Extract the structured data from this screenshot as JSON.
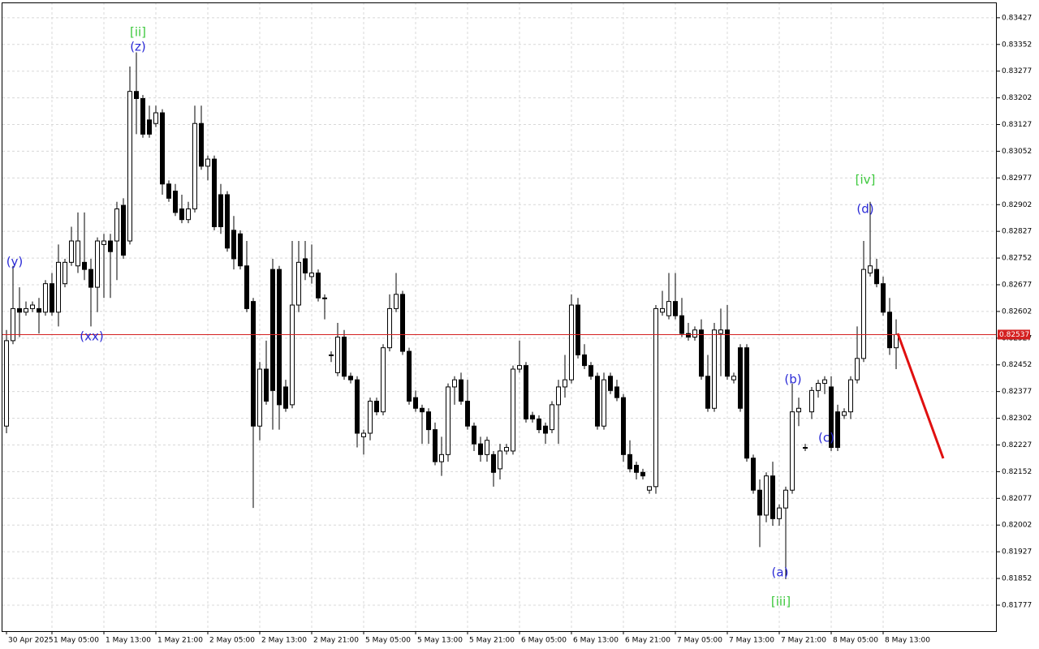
{
  "chart_data": {
    "type": "candlestick",
    "categories": [
      "30 Apr 2025",
      null,
      null,
      null,
      null,
      null,
      null,
      "1 May 05:00",
      null,
      null,
      null,
      null,
      null,
      null,
      null,
      "1 May 13:00",
      null,
      null,
      null,
      null,
      null,
      null,
      null,
      "1 May 21:00",
      null,
      null,
      null,
      null,
      null,
      null,
      null,
      "2 May 05:00",
      null,
      null,
      null,
      null,
      null,
      null,
      null,
      "2 May 13:00",
      null,
      null,
      null,
      null,
      null,
      null,
      null,
      "2 May 21:00",
      null,
      null,
      null,
      null,
      null,
      null,
      null,
      "5 May 05:00",
      null,
      null,
      null,
      null,
      null,
      null,
      null,
      "5 May 13:00",
      null,
      null,
      null,
      null,
      null,
      null,
      null,
      "5 May 21:00",
      null,
      null,
      null,
      null,
      null,
      null,
      null,
      "6 May 05:00",
      null,
      null,
      null,
      null,
      null,
      null,
      null,
      "6 May 13:00",
      null,
      null,
      null,
      null,
      null,
      null,
      null,
      "6 May 21:00",
      null,
      null,
      null,
      null,
      null,
      null,
      null,
      "7 May 05:00",
      null,
      null,
      null,
      null,
      null,
      null,
      null,
      "7 May 13:00",
      null,
      null,
      null,
      null,
      null,
      null,
      null,
      "7 May 21:00",
      null,
      null,
      null,
      null,
      null,
      null,
      null,
      "8 May 05:00",
      null,
      null,
      null,
      null,
      null,
      null,
      null,
      "8 May 13:00",
      null,
      null
    ],
    "candles": [
      [
        0.8228,
        0.8255,
        0.8226,
        0.8252
      ],
      [
        0.8252,
        0.8273,
        0.8251,
        0.8261
      ],
      [
        0.8261,
        0.8267,
        0.8253,
        0.826
      ],
      [
        0.826,
        0.8263,
        0.8259,
        0.8261
      ],
      [
        0.8261,
        0.8263,
        0.826,
        0.8262
      ],
      [
        0.8261,
        0.8264,
        0.8254,
        0.826
      ],
      [
        0.826,
        0.8269,
        0.8259,
        0.8268
      ],
      [
        0.8268,
        0.8271,
        0.8259,
        0.826
      ],
      [
        0.826,
        0.8279,
        0.8256,
        0.8274
      ],
      [
        0.8268,
        0.8275,
        0.8267,
        0.8274
      ],
      [
        0.8274,
        0.8284,
        0.8273,
        0.828
      ],
      [
        0.8273,
        0.8288,
        0.8271,
        0.828
      ],
      [
        0.8274,
        0.8288,
        0.8269,
        0.8272
      ],
      [
        0.8272,
        0.8275,
        0.8256,
        0.8267
      ],
      [
        0.8267,
        0.8281,
        0.826,
        0.828
      ],
      [
        0.8279,
        0.8282,
        0.8264,
        0.828
      ],
      [
        0.828,
        0.8282,
        0.8264,
        0.8277
      ],
      [
        0.828,
        0.8291,
        0.8269,
        0.8289
      ],
      [
        0.829,
        0.8292,
        0.8275,
        0.8276
      ],
      [
        0.828,
        0.8329,
        0.8279,
        0.8322
      ],
      [
        0.8322,
        0.8333,
        0.831,
        0.832
      ],
      [
        0.832,
        0.8321,
        0.8309,
        0.831
      ],
      [
        0.8314,
        0.8318,
        0.8309,
        0.831
      ],
      [
        0.8313,
        0.8318,
        0.8312,
        0.8316
      ],
      [
        0.8316,
        0.8317,
        0.8293,
        0.8296
      ],
      [
        0.8296,
        0.8297,
        0.8291,
        0.8292
      ],
      [
        0.8294,
        0.8296,
        0.8287,
        0.8288
      ],
      [
        0.8289,
        0.8293,
        0.8285,
        0.8286
      ],
      [
        0.8286,
        0.8291,
        0.8285,
        0.8289
      ],
      [
        0.8289,
        0.8318,
        0.8288,
        0.8313
      ],
      [
        0.8313,
        0.8318,
        0.83,
        0.8301
      ],
      [
        0.8301,
        0.8304,
        0.8297,
        0.8303
      ],
      [
        0.8303,
        0.8304,
        0.8283,
        0.8284
      ],
      [
        0.8293,
        0.8296,
        0.8282,
        0.8284
      ],
      [
        0.8293,
        0.8294,
        0.8277,
        0.8278
      ],
      [
        0.8283,
        0.8287,
        0.8272,
        0.8275
      ],
      [
        0.8282,
        0.8283,
        0.8272,
        0.8273
      ],
      [
        0.8273,
        0.828,
        0.826,
        0.8261
      ],
      [
        0.8263,
        0.8264,
        0.8205,
        0.8228
      ],
      [
        0.8228,
        0.8246,
        0.8224,
        0.8244
      ],
      [
        0.8244,
        0.8252,
        0.8234,
        0.8235
      ],
      [
        0.8272,
        0.8275,
        0.8227,
        0.8238
      ],
      [
        0.8272,
        0.8273,
        0.8227,
        0.8234
      ],
      [
        0.8239,
        0.8241,
        0.8232,
        0.8233
      ],
      [
        0.8234,
        0.828,
        0.8233,
        0.8262
      ],
      [
        0.8262,
        0.828,
        0.826,
        0.8274
      ],
      [
        0.8275,
        0.828,
        0.8269,
        0.8271
      ],
      [
        0.827,
        0.8279,
        0.8268,
        0.8271
      ],
      [
        0.8271,
        0.8272,
        0.8263,
        0.8264
      ],
      [
        0.8264,
        0.8265,
        0.8258,
        0.8264
      ],
      [
        0.8248,
        0.8249,
        0.8246,
        0.8248
      ],
      [
        0.8243,
        0.8257,
        0.8242,
        0.8253
      ],
      [
        0.8253,
        0.8255,
        0.8241,
        0.8242
      ],
      [
        0.8242,
        0.8243,
        0.824,
        0.8241
      ],
      [
        0.8241,
        0.8242,
        0.8222,
        0.8226
      ],
      [
        0.8225,
        0.8227,
        0.822,
        0.8226
      ],
      [
        0.8226,
        0.8236,
        0.8224,
        0.8235
      ],
      [
        0.8235,
        0.8236,
        0.8231,
        0.8232
      ],
      [
        0.8232,
        0.8251,
        0.8231,
        0.825
      ],
      [
        0.825,
        0.8265,
        0.8249,
        0.8261
      ],
      [
        0.8261,
        0.8271,
        0.826,
        0.8265
      ],
      [
        0.8265,
        0.8266,
        0.8248,
        0.8249
      ],
      [
        0.8249,
        0.825,
        0.8234,
        0.8235
      ],
      [
        0.8236,
        0.8238,
        0.8232,
        0.8233
      ],
      [
        0.8233,
        0.8234,
        0.8223,
        0.8232
      ],
      [
        0.8232,
        0.8233,
        0.8223,
        0.8227
      ],
      [
        0.8227,
        0.8229,
        0.8217,
        0.8218
      ],
      [
        0.8218,
        0.8225,
        0.8214,
        0.822
      ],
      [
        0.822,
        0.824,
        0.8218,
        0.8239
      ],
      [
        0.8239,
        0.8242,
        0.8234,
        0.8241
      ],
      [
        0.8241,
        0.8243,
        0.8234,
        0.8235
      ],
      [
        0.8235,
        0.8241,
        0.8227,
        0.8228
      ],
      [
        0.8228,
        0.8229,
        0.8221,
        0.8223
      ],
      [
        0.8223,
        0.8225,
        0.8218,
        0.822
      ],
      [
        0.822,
        0.8225,
        0.8218,
        0.8224
      ],
      [
        0.822,
        0.8221,
        0.8211,
        0.8215
      ],
      [
        0.8216,
        0.8223,
        0.8213,
        0.8221
      ],
      [
        0.8221,
        0.8223,
        0.822,
        0.8222
      ],
      [
        0.8221,
        0.8245,
        0.822,
        0.8244
      ],
      [
        0.8244,
        0.8252,
        0.8243,
        0.8245
      ],
      [
        0.8245,
        0.8246,
        0.8229,
        0.823
      ],
      [
        0.8231,
        0.8232,
        0.8229,
        0.823
      ],
      [
        0.823,
        0.8231,
        0.8226,
        0.8227
      ],
      [
        0.8228,
        0.8229,
        0.8223,
        0.8226
      ],
      [
        0.8227,
        0.8235,
        0.8226,
        0.8234
      ],
      [
        0.8234,
        0.8241,
        0.8223,
        0.8239
      ],
      [
        0.8239,
        0.8248,
        0.8236,
        0.8241
      ],
      [
        0.8241,
        0.8265,
        0.824,
        0.8262
      ],
      [
        0.8262,
        0.8264,
        0.8247,
        0.8248
      ],
      [
        0.8248,
        0.8251,
        0.8244,
        0.8245
      ],
      [
        0.8245,
        0.8246,
        0.8241,
        0.8242
      ],
      [
        0.8242,
        0.8243,
        0.8227,
        0.8228
      ],
      [
        0.8228,
        0.8243,
        0.8227,
        0.8241
      ],
      [
        0.8242,
        0.8243,
        0.8237,
        0.8238
      ],
      [
        0.8239,
        0.8241,
        0.8235,
        0.8236
      ],
      [
        0.8236,
        0.8237,
        0.8218,
        0.822
      ],
      [
        0.822,
        0.8224,
        0.8215,
        0.8216
      ],
      [
        0.8217,
        0.8218,
        0.8213,
        0.8215
      ],
      [
        0.8215,
        0.8216,
        0.8213,
        0.8214
      ],
      [
        0.821,
        0.8211,
        0.8209,
        0.8211
      ],
      [
        0.8211,
        0.8262,
        0.8209,
        0.8261
      ],
      [
        0.826,
        0.8266,
        0.8259,
        0.8261
      ],
      [
        0.8259,
        0.8271,
        0.8258,
        0.8263
      ],
      [
        0.8263,
        0.8271,
        0.8258,
        0.8259
      ],
      [
        0.8259,
        0.8264,
        0.8253,
        0.8254
      ],
      [
        0.8254,
        0.8257,
        0.8252,
        0.8253
      ],
      [
        0.8253,
        0.8256,
        0.8252,
        0.8255
      ],
      [
        0.8255,
        0.8258,
        0.8241,
        0.8242
      ],
      [
        0.8242,
        0.8248,
        0.8232,
        0.8233
      ],
      [
        0.8233,
        0.8257,
        0.8232,
        0.8255
      ],
      [
        0.8254,
        0.8261,
        0.8242,
        0.8255
      ],
      [
        0.8255,
        0.8262,
        0.8241,
        0.8242
      ],
      [
        0.8241,
        0.8243,
        0.824,
        0.8242
      ],
      [
        0.825,
        0.8251,
        0.8232,
        0.8233
      ],
      [
        0.825,
        0.8251,
        0.8218,
        0.8219
      ],
      [
        0.8219,
        0.822,
        0.8209,
        0.821
      ],
      [
        0.821,
        0.8213,
        0.8194,
        0.8203
      ],
      [
        0.8203,
        0.8215,
        0.8201,
        0.8214
      ],
      [
        0.8214,
        0.8218,
        0.82,
        0.8202
      ],
      [
        0.8202,
        0.8206,
        0.82,
        0.8205
      ],
      [
        0.8205,
        0.8211,
        0.8185,
        0.821
      ],
      [
        0.821,
        0.824,
        0.8209,
        0.8232
      ],
      [
        0.8232,
        0.8236,
        0.8228,
        0.8233
      ],
      [
        0.8222,
        0.8223,
        0.8221,
        0.8222
      ],
      [
        0.8232,
        0.8239,
        0.823,
        0.8238
      ],
      [
        0.8238,
        0.8241,
        0.8236,
        0.824
      ],
      [
        0.824,
        0.8242,
        0.8237,
        0.8241
      ],
      [
        0.8239,
        0.8242,
        0.8221,
        0.8222
      ],
      [
        0.8232,
        0.8234,
        0.8221,
        0.8222
      ],
      [
        0.8231,
        0.8233,
        0.823,
        0.8232
      ],
      [
        0.8232,
        0.8242,
        0.823,
        0.8241
      ],
      [
        0.8241,
        0.8256,
        0.824,
        0.8247
      ],
      [
        0.8247,
        0.828,
        0.8246,
        0.8272
      ],
      [
        0.8271,
        0.8291,
        0.827,
        0.8273
      ],
      [
        0.8272,
        0.8275,
        0.8267,
        0.8268
      ],
      [
        0.8268,
        0.827,
        0.8259,
        0.826
      ],
      [
        0.826,
        0.8264,
        0.8248,
        0.825
      ],
      [
        0.825,
        0.8258,
        0.8244,
        0.82537
      ]
    ],
    "last_price": 0.82537,
    "price_line_color": "#d42020",
    "up_color": "#ffffff",
    "down_color": "#000000",
    "ylim": [
      0.81704,
      0.8347
    ],
    "yticks": [
      0.83427,
      0.83352,
      0.83277,
      0.83202,
      0.83127,
      0.83052,
      0.82977,
      0.82902,
      0.82827,
      0.82752,
      0.82677,
      0.82602,
      0.82527,
      0.82452,
      0.82377,
      0.82302,
      0.82227,
      0.82152,
      0.82077,
      0.82002,
      0.81927,
      0.81852,
      0.81777
    ],
    "grid": true,
    "wave_labels": [
      {
        "text": "(y)",
        "color": "#2a2ad6"
      },
      {
        "text": "(xx)",
        "color": "#2a2ad6"
      },
      {
        "text": "[ii]",
        "color": "#3cc83c"
      },
      {
        "text": "(z)",
        "color": "#2a2ad6"
      },
      {
        "text": "[iv]",
        "color": "#3cc83c"
      },
      {
        "text": "(d)",
        "color": "#2a2ad6"
      },
      {
        "text": "(b)",
        "color": "#2a2ad6"
      },
      {
        "text": "(c)",
        "color": "#2a2ad6"
      },
      {
        "text": "(a)",
        "color": "#2a2ad6"
      },
      {
        "text": "[iii]",
        "color": "#3cc83c"
      }
    ]
  }
}
